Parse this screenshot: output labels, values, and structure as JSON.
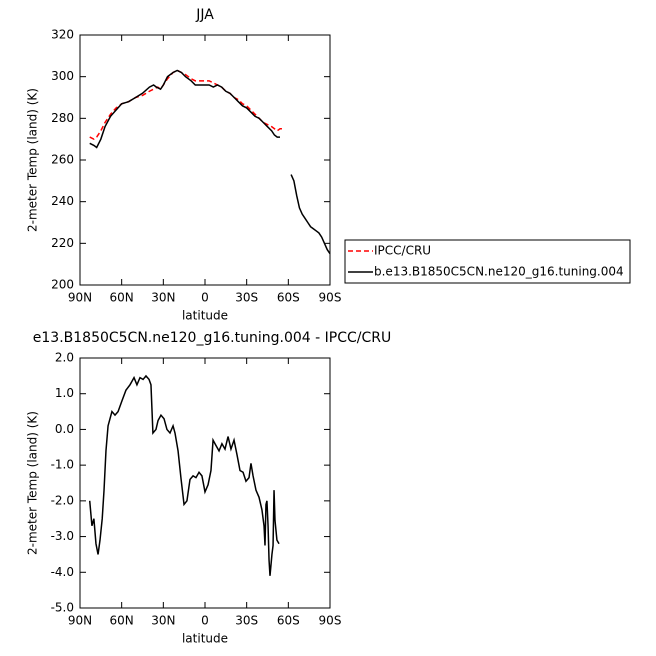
{
  "chart_data": [
    {
      "type": "line",
      "title": "JJA",
      "xlabel": "latitude",
      "ylabel": "2-meter Temp (land) (K)",
      "xlim": [
        90,
        -90
      ],
      "xticks": [
        {
          "value": 90,
          "label": "90N"
        },
        {
          "value": 60,
          "label": "60N"
        },
        {
          "value": 30,
          "label": "30N"
        },
        0,
        {
          "value": -30,
          "label": "30S"
        },
        {
          "value": -60,
          "label": "60S"
        },
        {
          "value": -90,
          "label": "90S"
        }
      ],
      "ylim": [
        200,
        320
      ],
      "yticks": [
        200,
        220,
        240,
        260,
        280,
        300,
        320
      ],
      "legend_position": "right",
      "series": [
        {
          "name": "IPCC/CRU",
          "color": "#ff0000",
          "linestyle": "dashed",
          "x": [
            83,
            80,
            78,
            75,
            72,
            68,
            64,
            60,
            55,
            50,
            45,
            40,
            37,
            34,
            32,
            30,
            27,
            23,
            20,
            17,
            14,
            10,
            7,
            3,
            0,
            -3,
            -6,
            -9,
            -12,
            -15,
            -18,
            -21,
            -24,
            -27,
            -30,
            -33,
            -36,
            -39,
            -42,
            -45,
            -48,
            -50,
            -52,
            -54,
            -56
          ],
          "values": [
            271,
            270,
            271,
            274,
            278,
            282,
            285,
            287,
            288,
            290,
            291,
            293,
            294,
            295,
            294,
            296,
            299,
            302,
            303,
            302,
            301,
            299,
            298,
            298,
            298,
            298,
            297,
            296,
            295,
            293,
            292,
            290,
            289,
            287,
            286,
            284,
            282,
            280,
            278,
            277,
            276,
            275,
            274,
            275,
            275
          ]
        },
        {
          "name": "b.e13.B1850C5CN.ne120_g16.tuning.004",
          "color": "#000000",
          "linestyle": "solid",
          "x": [
            83,
            80,
            78,
            75,
            72,
            68,
            64,
            60,
            55,
            50,
            45,
            40,
            37,
            35,
            32,
            30,
            27,
            23,
            20,
            17,
            14,
            10,
            7,
            3,
            0,
            -3,
            -6,
            -9,
            -12,
            -15,
            -18,
            -21,
            -24,
            -27,
            -30,
            -33,
            -36,
            -39,
            -42,
            -45,
            -48,
            -50,
            -52,
            -54,
            -58,
            -62,
            -64,
            -66,
            -68,
            -70,
            -72,
            -74,
            -76,
            -78,
            -80,
            -82,
            -84,
            -86,
            -88,
            -90
          ],
          "values": [
            268,
            267,
            266,
            270,
            276,
            281,
            284,
            287,
            288,
            290,
            292,
            295,
            296,
            295,
            294,
            296,
            300,
            302,
            303,
            302,
            300,
            298,
            296,
            296,
            296,
            296,
            295,
            296,
            295,
            293,
            292,
            290,
            288,
            286,
            285,
            283,
            281,
            280,
            278,
            276,
            274,
            272,
            271,
            271,
            null,
            253,
            250,
            243,
            237,
            234,
            232,
            230,
            228,
            227,
            226,
            225,
            223,
            220,
            217,
            215
          ]
        }
      ]
    },
    {
      "type": "line",
      "title": "e13.B1850C5CN.ne120_g16.tuning.004 - IPCC/CRU",
      "xlabel": "latitude",
      "ylabel": "2-meter Temp (land) (K)",
      "xlim": [
        90,
        -90
      ],
      "xticks": [
        {
          "value": 90,
          "label": "90N"
        },
        {
          "value": 60,
          "label": "60N"
        },
        {
          "value": 30,
          "label": "30N"
        },
        0,
        {
          "value": -30,
          "label": "30S"
        },
        {
          "value": -60,
          "label": "60S"
        },
        {
          "value": -90,
          "label": "90S"
        }
      ],
      "ylim": [
        -5,
        2
      ],
      "yticks": [
        {
          "value": -5,
          "label": "-5.0"
        },
        {
          "value": -4,
          "label": "-4.0"
        },
        {
          "value": -3,
          "label": "-3.0"
        },
        {
          "value": -2,
          "label": "-2.0"
        },
        {
          "value": -1,
          "label": "-1.0"
        },
        {
          "value": 0,
          "label": "0.0"
        },
        {
          "value": 1,
          "label": "1.0"
        },
        {
          "value": 2,
          "label": "2.0"
        }
      ],
      "series": [
        {
          "color": "#000000",
          "linestyle": "solid",
          "x": [
            83,
            81.4,
            80,
            78.5,
            77,
            75.6,
            74,
            72.7,
            71.3,
            69.8,
            67,
            64.8,
            62.6,
            59.8,
            56.9,
            54,
            51.1,
            49,
            46.8,
            44.6,
            42.5,
            40.3,
            38.9,
            37.5,
            35.3,
            33.8,
            31.7,
            29.5,
            27.4,
            25.2,
            23,
            21.6,
            19.4,
            17.2,
            15.1,
            13,
            10.8,
            8.6,
            6.5,
            4.3,
            2.2,
            0,
            -2.2,
            -4.3,
            -5.8,
            -7.9,
            -10.1,
            -12.2,
            -14.4,
            -16.6,
            -18.7,
            -20.9,
            -23,
            -25.2,
            -27.4,
            -29.5,
            -31.7,
            -33.1,
            -34.6,
            -36.7,
            -38.9,
            -41,
            -42.5,
            -43.2,
            -43.9,
            -44.6,
            -45.4,
            -46.1,
            -46.8,
            -47.5,
            -48.2,
            -49,
            -49.7,
            -50.4,
            -51.8,
            -53.3
          ],
          "values": [
            -2.0,
            -2.7,
            -2.5,
            -3.2,
            -3.5,
            -3.1,
            -2.5,
            -1.7,
            -0.6,
            0.1,
            0.5,
            0.4,
            0.5,
            0.8,
            1.1,
            1.25,
            1.45,
            1.25,
            1.45,
            1.4,
            1.5,
            1.4,
            1.25,
            -0.1,
            0.0,
            0.25,
            0.4,
            0.3,
            0.0,
            -0.1,
            0.1,
            -0.1,
            -0.6,
            -1.4,
            -2.1,
            -2.0,
            -1.4,
            -1.3,
            -1.35,
            -1.2,
            -1.3,
            -1.75,
            -1.55,
            -1.15,
            -0.3,
            -0.45,
            -0.6,
            -0.4,
            -0.55,
            -0.2,
            -0.55,
            -0.3,
            -0.7,
            -1.15,
            -1.2,
            -1.45,
            -1.35,
            -0.95,
            -1.3,
            -1.7,
            -1.9,
            -2.25,
            -2.7,
            -3.25,
            -2.1,
            -2.0,
            -2.7,
            -3.65,
            -4.1,
            -3.8,
            -3.5,
            -3.25,
            -1.7,
            -2.55,
            -3.1,
            -3.2
          ]
        }
      ]
    }
  ]
}
